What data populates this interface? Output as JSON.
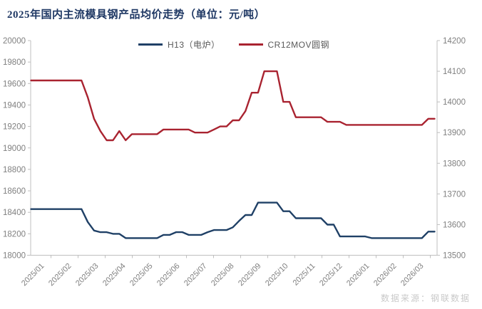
{
  "title": "2025年国内主流模具钢产品均价走势（单位：元/吨）",
  "source_note": "数据来源：钢联数据",
  "colors": {
    "title": "#1F3864",
    "axis_line": "#BFBFBF",
    "axis_text": "#808080",
    "source_note": "#C9C9C9",
    "h13_line": "#1F4066",
    "cr12mov_line": "#A92330"
  },
  "chart_data": {
    "type": "line",
    "title": "2025年国内主流模具钢产品均价走势（单位：元/吨）",
    "x_unit": "week",
    "x_tick_labels": [
      "2025/01",
      "2025/02",
      "2025/03",
      "2025/04",
      "2025/05",
      "2025/06",
      "2025/07",
      "2025/08",
      "2025/09",
      "2025/10",
      "2025/11",
      "2025/12",
      "2026/01",
      "2026/02",
      "2026/03"
    ],
    "grid": false,
    "legend_position": "top-center",
    "left_axis": {
      "min": 18000,
      "max": 20000,
      "step": 200
    },
    "right_axis": {
      "min": 13500,
      "max": 14200,
      "step": 100
    },
    "series": [
      {
        "name": "H13（电炉）",
        "color": "#1F4066",
        "axis": "left",
        "values": [
          18430,
          18430,
          18430,
          18430,
          18430,
          18430,
          18430,
          18430,
          18430,
          18310,
          18230,
          18215,
          18215,
          18200,
          18200,
          18160,
          18160,
          18160,
          18160,
          18160,
          18160,
          18190,
          18190,
          18215,
          18215,
          18190,
          18190,
          18190,
          18215,
          18235,
          18235,
          18235,
          18260,
          18320,
          18375,
          18375,
          18490,
          18490,
          18490,
          18490,
          18410,
          18410,
          18345,
          18345,
          18345,
          18345,
          18345,
          18285,
          18285,
          18175,
          18175,
          18175,
          18175,
          18175,
          18160,
          18160,
          18160,
          18160,
          18160,
          18160,
          18160,
          18160,
          18160,
          18220,
          18220
        ]
      },
      {
        "name": "CR12MOV圆钢",
        "color": "#A92330",
        "axis": "right",
        "values": [
          14070,
          14070,
          14070,
          14070,
          14070,
          14070,
          14070,
          14070,
          14070,
          14015,
          13945,
          13905,
          13875,
          13875,
          13905,
          13875,
          13895,
          13895,
          13895,
          13895,
          13895,
          13910,
          13910,
          13910,
          13910,
          13910,
          13900,
          13900,
          13900,
          13910,
          13920,
          13920,
          13940,
          13940,
          13970,
          14030,
          14030,
          14100,
          14100,
          14100,
          14000,
          14000,
          13950,
          13950,
          13950,
          13950,
          13950,
          13935,
          13935,
          13935,
          13925,
          13925,
          13925,
          13925,
          13925,
          13925,
          13925,
          13925,
          13925,
          13925,
          13925,
          13925,
          13925,
          13945,
          13945
        ]
      }
    ]
  }
}
